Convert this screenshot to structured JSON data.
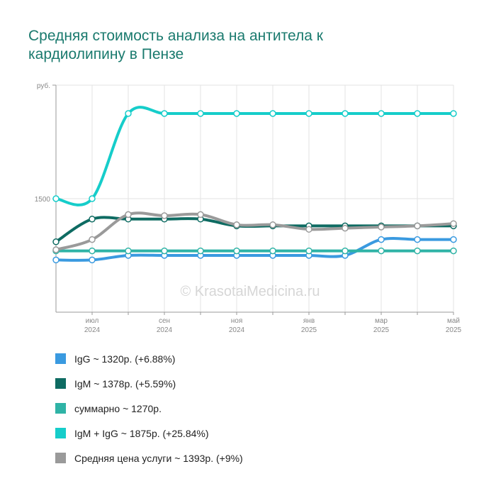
{
  "title": {
    "line1": "Средняя стоимость анализа на антитела к",
    "line2": "кардиолипину в Пензе"
  },
  "watermark": "© KrasotaiMedicina.ru",
  "chart_data": {
    "type": "line",
    "y_unit_label": "руб.",
    "y_tick_labels": [
      {
        "value": 1500,
        "label": "1500"
      }
    ],
    "ylim": [
      500,
      2500
    ],
    "grid": true,
    "x": [
      "2024-06",
      "2024-07",
      "2024-08",
      "2024-09",
      "2024-10",
      "2024-11",
      "2024-12",
      "2025-01",
      "2025-02",
      "2025-03",
      "2025-04",
      "2025-05"
    ],
    "x_tick_labels": [
      {
        "index": 1,
        "month": "июл",
        "year": "2024"
      },
      {
        "index": 3,
        "month": "сен",
        "year": "2024"
      },
      {
        "index": 5,
        "month": "ноя",
        "year": "2024"
      },
      {
        "index": 7,
        "month": "янв",
        "year": "2025"
      },
      {
        "index": 9,
        "month": "мар",
        "year": "2025"
      },
      {
        "index": 11,
        "month": "май",
        "year": "2025"
      }
    ],
    "series": [
      {
        "name": "IgG",
        "color": "#3a9ae0",
        "summary": "IgG ~ 1320р. (+6.88%)",
        "values": [
          960,
          960,
          1000,
          1000,
          1000,
          1000,
          1000,
          1000,
          1000,
          1140,
          1140,
          1140
        ]
      },
      {
        "name": "IgM",
        "color": "#0e6b62",
        "summary": "IgM ~ 1378р. (+5.59%)",
        "values": [
          1120,
          1320,
          1320,
          1320,
          1320,
          1260,
          1260,
          1260,
          1260,
          1260,
          1260,
          1260
        ]
      },
      {
        "name": "суммарно",
        "color": "#2fb3a6",
        "summary": "суммарно ~ 1270р.",
        "values": [
          1040,
          1040,
          1040,
          1040,
          1040,
          1040,
          1040,
          1040,
          1040,
          1040,
          1040,
          1040
        ]
      },
      {
        "name": "IgM + IgG",
        "color": "#16cdca",
        "summary": "IgM + IgG ~ 1875р. (+25.84%)",
        "values": [
          1500,
          1500,
          2250,
          2250,
          2250,
          2250,
          2250,
          2250,
          2250,
          2250,
          2250,
          2250
        ]
      },
      {
        "name": "Средняя цена услуги",
        "color": "#9a9a9a",
        "summary": "Средняя цена услуги ~ 1393р. (+9%)",
        "values": [
          1050,
          1140,
          1360,
          1350,
          1360,
          1270,
          1270,
          1230,
          1240,
          1250,
          1260,
          1280
        ]
      }
    ]
  }
}
